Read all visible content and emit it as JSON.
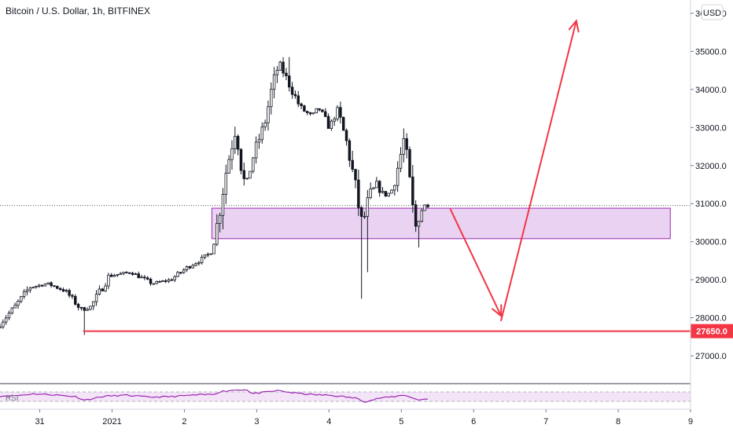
{
  "header": {
    "title": "Bitcoin / U.S. Dollar, 1h, BITFINEX"
  },
  "currency_button": {
    "label": "USD"
  },
  "colors": {
    "candle": "#131722",
    "zone_fill": "#ead2f2",
    "zone_border": "#9c27b0",
    "arrow": "#f23645",
    "support_line": "#f23645",
    "rsi_line": "#9c27b0",
    "rsi_band": "#f3e4f8"
  },
  "chart_data": {
    "type": "candlestick",
    "title": "Bitcoin / U.S. Dollar, 1h, BITFINEX",
    "y_axis": {
      "ticks": [
        "36000.0",
        "35000.0",
        "34000.0",
        "33000.0",
        "32000.0",
        "31000.0",
        "30000.0",
        "29000.0",
        "28000.0",
        "27000.0"
      ],
      "range": [
        26300,
        36350
      ]
    },
    "x_axis": {
      "ticks": [
        "31",
        "2021",
        "2",
        "3",
        "4",
        "5",
        "6",
        "7",
        "8",
        "9"
      ],
      "range_days": [
        -0.55,
        9.0
      ],
      "tick_days": [
        0,
        1,
        2,
        3,
        4,
        5,
        6,
        7,
        8,
        9
      ]
    },
    "last_price": 30950,
    "price_path": [
      [
        -0.55,
        27750
      ],
      [
        -0.3,
        28300
      ],
      [
        -0.1,
        28800
      ],
      [
        0.15,
        28900
      ],
      [
        0.4,
        28700
      ],
      [
        0.62,
        28200
      ],
      [
        0.75,
        28300
      ],
      [
        1.0,
        29100
      ],
      [
        1.3,
        29200
      ],
      [
        1.6,
        28900
      ],
      [
        1.85,
        29000
      ],
      [
        2.1,
        29350
      ],
      [
        2.25,
        29500
      ],
      [
        2.4,
        29700
      ],
      [
        2.5,
        30500
      ],
      [
        2.6,
        31700
      ],
      [
        2.75,
        33000
      ],
      [
        2.88,
        31400
      ],
      [
        3.0,
        32300
      ],
      [
        3.15,
        33100
      ],
      [
        3.25,
        34000
      ],
      [
        3.35,
        34700
      ],
      [
        3.5,
        34100
      ],
      [
        3.65,
        33500
      ],
      [
        3.8,
        33300
      ],
      [
        3.9,
        33500
      ],
      [
        4.05,
        33000
      ],
      [
        4.15,
        33500
      ],
      [
        4.3,
        32500
      ],
      [
        4.4,
        31500
      ],
      [
        4.5,
        30400
      ],
      [
        4.6,
        31200
      ],
      [
        4.7,
        31500
      ],
      [
        4.8,
        31200
      ],
      [
        4.9,
        31300
      ],
      [
        5.0,
        32000
      ],
      [
        5.08,
        32700
      ],
      [
        5.15,
        31600
      ],
      [
        5.23,
        30300
      ],
      [
        5.3,
        30800
      ],
      [
        5.37,
        30950
      ]
    ],
    "spikes": [
      {
        "day": 0.62,
        "low": 27550
      },
      {
        "day": 4.47,
        "low": 28500
      },
      {
        "day": 4.53,
        "low": 29200
      },
      {
        "day": 5.25,
        "low": 29850
      },
      {
        "day": 3.45,
        "high": 34850
      },
      {
        "day": 5.08,
        "high": 32850
      }
    ],
    "annotations": [
      {
        "type": "zone",
        "day_start": 2.38,
        "day_end": 8.72,
        "price_low": 30080,
        "price_high": 30880
      },
      {
        "type": "horizontal_line",
        "day_start": 0.6,
        "price": 27650,
        "label": "27650.0"
      },
      {
        "type": "arrow",
        "path": [
          [
            5.68,
            30850
          ],
          [
            6.38,
            28050
          ]
        ]
      },
      {
        "type": "arrow",
        "path": [
          [
            6.38,
            27930
          ],
          [
            7.42,
            35800
          ]
        ]
      }
    ],
    "rsi": {
      "label": "RSI",
      "band": [
        30,
        70
      ],
      "points": [
        [
          -0.55,
          52
        ],
        [
          -0.3,
          55
        ],
        [
          -0.1,
          62
        ],
        [
          0.2,
          58
        ],
        [
          0.5,
          50
        ],
        [
          0.62,
          35
        ],
        [
          0.9,
          52
        ],
        [
          1.2,
          56
        ],
        [
          1.5,
          48
        ],
        [
          1.8,
          50
        ],
        [
          2.1,
          56
        ],
        [
          2.4,
          60
        ],
        [
          2.5,
          72
        ],
        [
          2.7,
          78
        ],
        [
          2.88,
          80
        ],
        [
          2.92,
          62
        ],
        [
          3.1,
          68
        ],
        [
          3.3,
          76
        ],
        [
          3.5,
          66
        ],
        [
          3.8,
          58
        ],
        [
          4.0,
          56
        ],
        [
          4.2,
          50
        ],
        [
          4.4,
          42
        ],
        [
          4.5,
          28
        ],
        [
          4.7,
          44
        ],
        [
          4.9,
          50
        ],
        [
          5.05,
          58
        ],
        [
          5.15,
          44
        ],
        [
          5.25,
          36
        ],
        [
          5.37,
          42
        ]
      ]
    }
  }
}
